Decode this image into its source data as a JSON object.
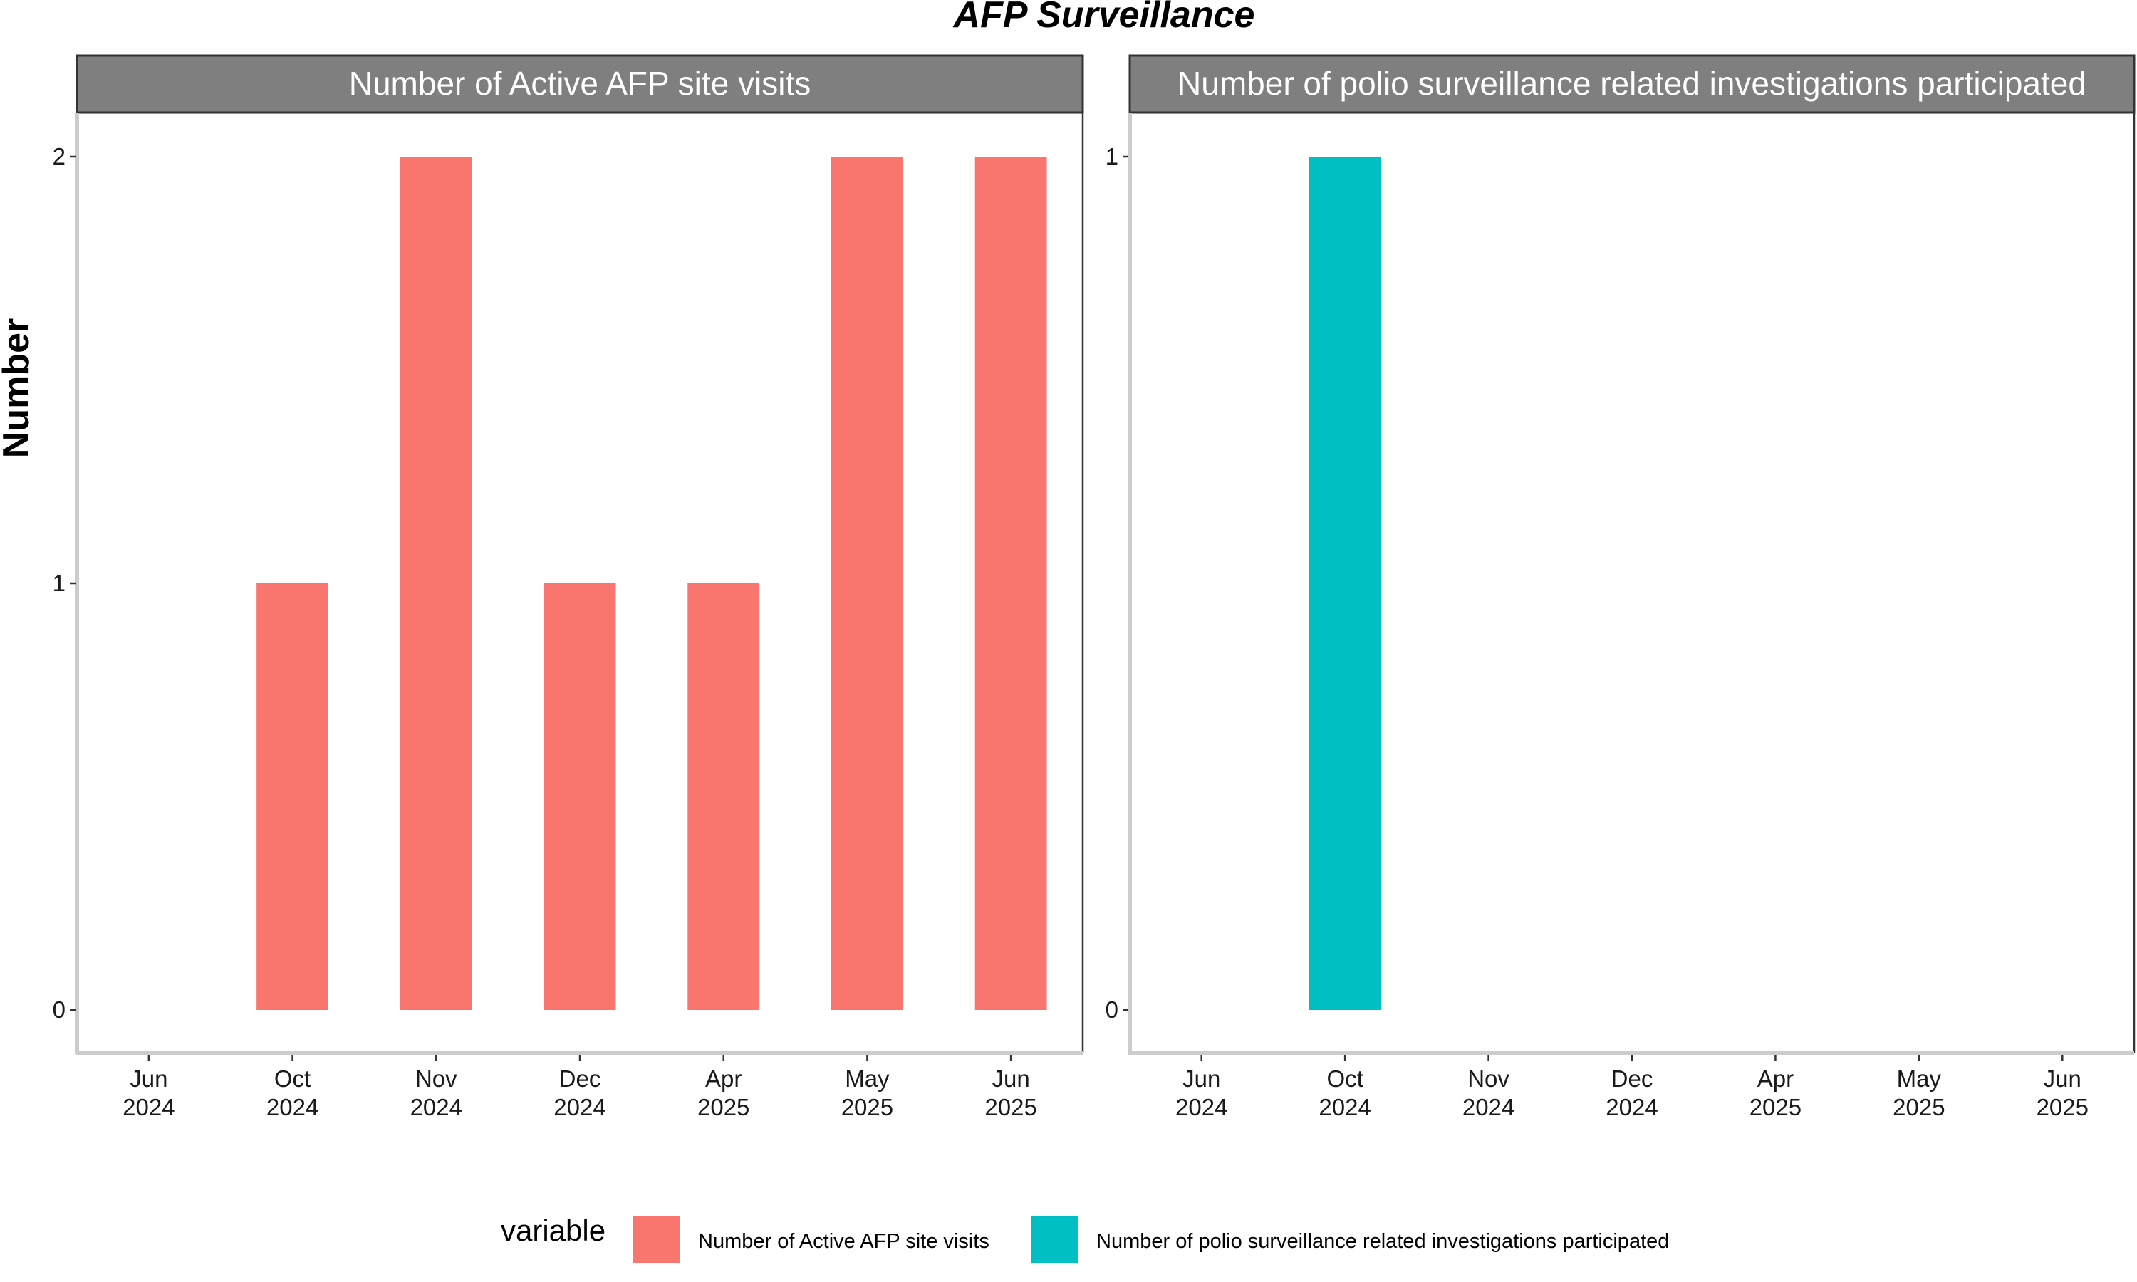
{
  "chart_data": {
    "type": "bar",
    "title": "AFP Surveillance",
    "ylabel": "Number",
    "xlabel": "",
    "grid": false,
    "legend": {
      "title": "variable",
      "placement": "bottom",
      "entries": [
        {
          "label": "Number of Active AFP site visits",
          "color": "#F8766D"
        },
        {
          "label": "Number of polio surveillance related investigations participated",
          "color": "#00BFC4"
        }
      ]
    },
    "categories": [
      "Jun\n2024",
      "Oct\n2024",
      "Nov\n2024",
      "Dec\n2024",
      "Apr\n2025",
      "May\n2025",
      "Jun\n2025"
    ],
    "panels": [
      {
        "strip": "Number of Active AFP site visits",
        "color": "#F8766D",
        "ylim": [
          0,
          2
        ],
        "yticks": [
          0,
          1,
          2
        ],
        "values": [
          null,
          1,
          2,
          1,
          1,
          2,
          2
        ]
      },
      {
        "strip": "Number of polio surveillance related investigations participated",
        "color": "#00BFC4",
        "ylim": [
          0,
          1
        ],
        "yticks": [
          0,
          1
        ],
        "values": [
          null,
          1,
          null,
          null,
          null,
          null,
          null
        ]
      }
    ]
  }
}
